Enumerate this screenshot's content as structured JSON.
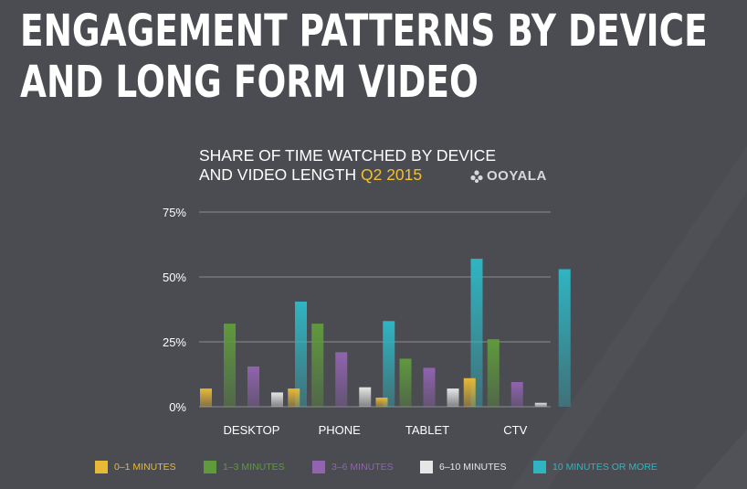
{
  "header": {
    "title_line1": "ENGAGEMENT PATTERNS BY DEVICE",
    "title_line2": "AND LONG FORM VIDEO"
  },
  "subtitle": {
    "line1": "SHARE OF TIME WATCHED BY DEVICE",
    "line2_prefix": "AND VIDEO LENGTH ",
    "line2_highlight": "Q2 2015"
  },
  "brand": {
    "name": "OOYALA",
    "icon": "ooyala-logo-icon"
  },
  "colors": {
    "background": "#4a4c51",
    "highlight": "#f2c12e"
  },
  "chart_data": {
    "type": "bar",
    "title": "SHARE OF TIME WATCHED BY DEVICE AND VIDEO LENGTH Q2 2015",
    "categories": [
      "DESKTOP",
      "PHONE",
      "TABLET",
      "CTV"
    ],
    "ylim": [
      0,
      75
    ],
    "yticks": [
      0,
      25,
      50,
      75
    ],
    "ytick_labels": [
      "0%",
      "25%",
      "50%",
      "75%"
    ],
    "grid": true,
    "legend_position": "bottom",
    "series": [
      {
        "name": "0–1 MINUTES",
        "color": "#e8b935",
        "values": [
          7,
          7,
          3.5,
          11
        ]
      },
      {
        "name": "1–3 MINUTES",
        "color": "#5f9a3c",
        "values": [
          32,
          32,
          18.5,
          26
        ]
      },
      {
        "name": "3–6 MINUTES",
        "color": "#9163b0",
        "values": [
          15.5,
          21,
          15,
          9.5
        ]
      },
      {
        "name": "6–10 MINUTES",
        "color": "#e6e6e6",
        "values": [
          5.5,
          7.5,
          7,
          1.5
        ]
      },
      {
        "name": "10 MINUTES OR MORE",
        "color": "#2fb5c2",
        "values": [
          40.5,
          33,
          57,
          53
        ]
      }
    ]
  }
}
